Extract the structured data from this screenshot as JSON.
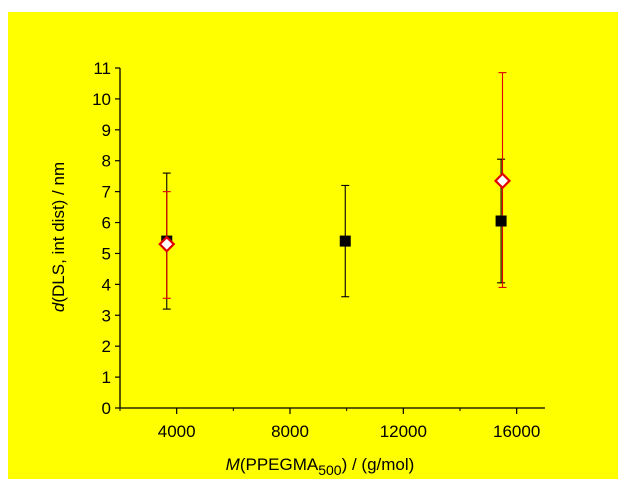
{
  "colors": {
    "background": "#ffff00",
    "page": "#ffffff",
    "axis": "#000000",
    "series_filled": "#000000",
    "series_open_edge": "#e00000",
    "series_open_fill": "#ffffff"
  },
  "chart_data": {
    "type": "scatter",
    "title": "",
    "xlabel": {
      "italic": "M",
      "main": "(PPEGMA",
      "sub": "500",
      "tail": ") / (g/mol)"
    },
    "ylabel": {
      "italic": "d",
      "main": "(DLS, int dist) / nm"
    },
    "xlim": [
      2000,
      17000
    ],
    "ylim": [
      0,
      11
    ],
    "x_ticks": [
      4000,
      8000,
      12000,
      16000
    ],
    "x_minor_ticks": [
      2000,
      6000,
      10000,
      14000
    ],
    "y_ticks": [
      0,
      1,
      2,
      3,
      4,
      5,
      6,
      7,
      8,
      9,
      10,
      11
    ],
    "grid": false,
    "legend": "none",
    "series": [
      {
        "marker": "filled-square",
        "color": "#000000",
        "points": [
          {
            "x": 3650,
            "y": 5.4,
            "y_low": 3.2,
            "y_high": 7.6
          },
          {
            "x": 9950,
            "y": 5.4,
            "y_low": 3.6,
            "y_high": 7.2
          },
          {
            "x": 15450,
            "y": 6.05,
            "y_low": 4.05,
            "y_high": 8.05
          }
        ]
      },
      {
        "marker": "open-diamond",
        "color": "#e00000",
        "points": [
          {
            "x": 3650,
            "y": 5.3,
            "y_low": 3.55,
            "y_high": 7.0
          },
          {
            "x": 15500,
            "y": 7.35,
            "y_low": 3.9,
            "y_high": 10.85
          }
        ]
      }
    ]
  }
}
